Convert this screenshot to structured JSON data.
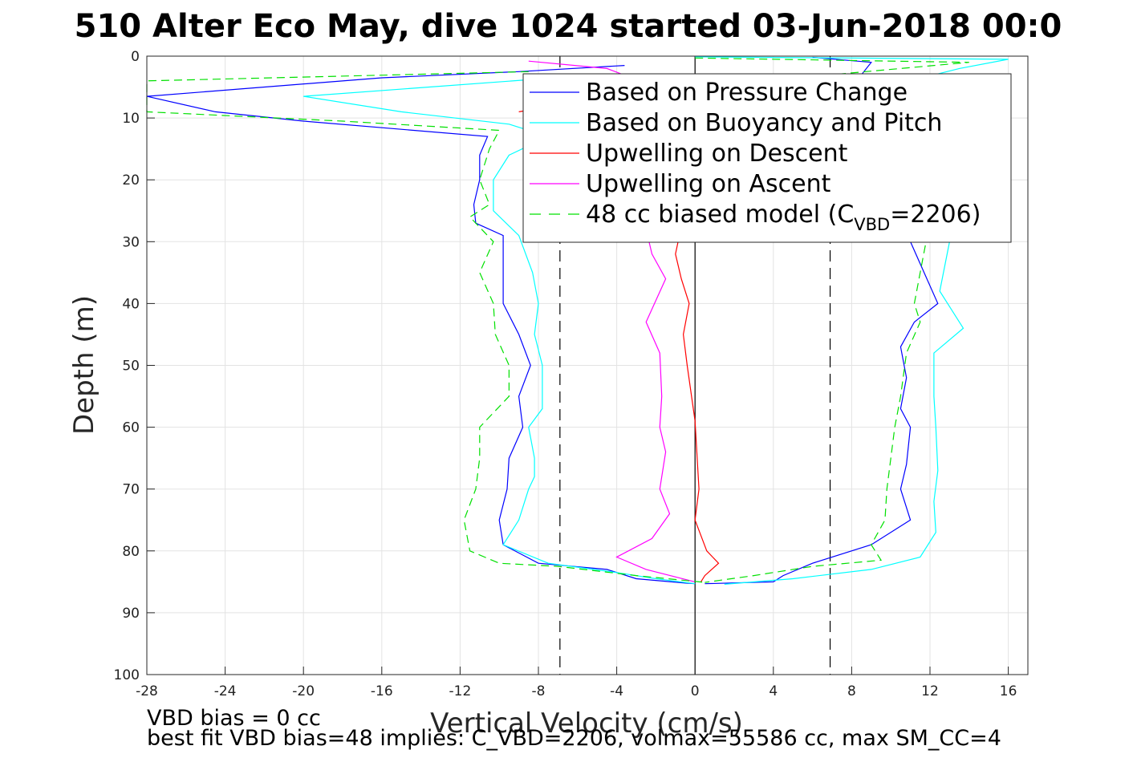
{
  "chart_data": {
    "type": "line",
    "title": "510 Alter Eco May, dive 1024 started 03-Jun-2018 00:0",
    "xlabel": "Vertical Velocity (cm/s)",
    "ylabel": "Depth (m)",
    "xlim": [
      -28,
      17
    ],
    "ylim": [
      0,
      100
    ],
    "y_reversed": true,
    "grid": true,
    "legend_position": "top-right",
    "x_ticks": [
      "-28",
      "-24",
      "-20",
      "-16",
      "-12",
      "-8",
      "-4",
      "0",
      "4",
      "8",
      "12",
      "16"
    ],
    "y_ticks": [
      "0",
      "10",
      "20",
      "30",
      "40",
      "50",
      "60",
      "70",
      "80",
      "90",
      "100"
    ],
    "reference_lines": [
      {
        "x": -6.9,
        "style": "dashed",
        "color": "#000000"
      },
      {
        "x": 0,
        "style": "solid",
        "color": "#000000"
      },
      {
        "x": 6.9,
        "style": "dashed",
        "color": "#000000"
      }
    ],
    "series": [
      {
        "name": "Based on Pressure Change",
        "color": "#0000ff",
        "dash": "",
        "descent": [
          [
            -3.6,
            1.5
          ],
          [
            -9,
            2.5
          ],
          [
            -16,
            3.5
          ],
          [
            -28,
            6.5
          ],
          [
            -24.5,
            9
          ],
          [
            -20,
            10.5
          ],
          [
            -10.6,
            13
          ],
          [
            -11,
            16
          ],
          [
            -11,
            20
          ],
          [
            -11.3,
            24
          ],
          [
            -11.2,
            27
          ],
          [
            -9.8,
            29
          ],
          [
            -9.8,
            35
          ],
          [
            -9.8,
            40
          ],
          [
            -9,
            45
          ],
          [
            -8.4,
            50
          ],
          [
            -9,
            55
          ],
          [
            -8.8,
            60
          ],
          [
            -9.5,
            65
          ],
          [
            -9.6,
            70
          ],
          [
            -10,
            75
          ],
          [
            -9.8,
            79
          ],
          [
            -8,
            82
          ],
          [
            -4.5,
            83
          ],
          [
            -3,
            84.5
          ],
          [
            -0.5,
            85.2
          ],
          [
            0,
            85.3
          ]
        ],
        "ascent": [
          [
            6,
            0.2
          ],
          [
            9,
            1
          ],
          [
            8.5,
            3
          ],
          [
            11,
            5
          ],
          [
            11.2,
            10
          ],
          [
            11.3,
            20
          ],
          [
            11,
            30
          ],
          [
            12.4,
            40
          ],
          [
            11.2,
            43
          ],
          [
            10.5,
            47
          ],
          [
            10.8,
            52
          ],
          [
            10.5,
            57
          ],
          [
            11,
            60
          ],
          [
            10.8,
            66
          ],
          [
            10.5,
            70
          ],
          [
            11,
            75
          ],
          [
            9,
            79
          ],
          [
            6,
            82
          ],
          [
            4.5,
            84
          ],
          [
            4,
            85
          ],
          [
            0.5,
            85.3
          ]
        ]
      },
      {
        "name": "Based on Buoyancy and Pitch",
        "color": "#00ffff",
        "dash": "",
        "descent": [
          [
            -5,
            3
          ],
          [
            -20,
            6.5
          ],
          [
            -15,
            9
          ],
          [
            -9.5,
            11
          ],
          [
            -7.5,
            13
          ],
          [
            -9.5,
            16
          ],
          [
            -10.3,
            20
          ],
          [
            -10.3,
            25
          ],
          [
            -9,
            29
          ],
          [
            -8.3,
            35
          ],
          [
            -8,
            40
          ],
          [
            -8.2,
            45
          ],
          [
            -7.8,
            50
          ],
          [
            -7.8,
            57
          ],
          [
            -8.5,
            60
          ],
          [
            -8.2,
            65
          ],
          [
            -8.2,
            68
          ],
          [
            -8.5,
            70
          ],
          [
            -9,
            75
          ],
          [
            -9.8,
            79
          ],
          [
            -7.5,
            82
          ],
          [
            -4,
            83.5
          ],
          [
            -2,
            84.5
          ],
          [
            0,
            85.3
          ]
        ],
        "ascent": [
          [
            0,
            0.1
          ],
          [
            16,
            0.5
          ],
          [
            13.5,
            2
          ],
          [
            11,
            4
          ],
          [
            12,
            7
          ],
          [
            12.5,
            15
          ],
          [
            12.8,
            25
          ],
          [
            13,
            30
          ],
          [
            12.5,
            38
          ],
          [
            13.7,
            44
          ],
          [
            12.2,
            48
          ],
          [
            12.2,
            55
          ],
          [
            12.3,
            60
          ],
          [
            12.4,
            67
          ],
          [
            12.2,
            72
          ],
          [
            12.3,
            77
          ],
          [
            11.5,
            81
          ],
          [
            9,
            83
          ],
          [
            5,
            84.5
          ],
          [
            1.5,
            85.4
          ]
        ]
      },
      {
        "name": "Upwelling on Descent",
        "color": "#ff0000",
        "dash": "",
        "descent": [
          [
            -9,
            9
          ],
          [
            -6.2,
            7.5
          ],
          [
            -5.5,
            12
          ],
          [
            -2.2,
            15
          ],
          [
            -0.8,
            20
          ],
          [
            -0.5,
            25
          ],
          [
            -0.8,
            29
          ],
          [
            -1,
            32
          ],
          [
            -0.7,
            36
          ],
          [
            -0.3,
            40
          ],
          [
            -0.6,
            45
          ],
          [
            -0.4,
            50
          ],
          [
            0,
            59
          ],
          [
            0.2,
            70
          ],
          [
            0,
            75
          ],
          [
            0.6,
            80
          ],
          [
            1.2,
            82
          ],
          [
            0.5,
            84
          ],
          [
            0.3,
            85
          ]
        ]
      },
      {
        "name": "Upwelling on Ascent",
        "color": "#ff00ff",
        "dash": "",
        "descent": [
          [
            -8.5,
            0.8
          ],
          [
            -4.5,
            2
          ],
          [
            -2,
            5
          ],
          [
            -2.2,
            12
          ],
          [
            -2,
            20
          ],
          [
            -2.5,
            28
          ],
          [
            -2.2,
            32
          ],
          [
            -1.5,
            36
          ],
          [
            -2.5,
            43
          ],
          [
            -1.8,
            48
          ],
          [
            -1.7,
            55
          ],
          [
            -1.8,
            60
          ],
          [
            -1.5,
            64
          ],
          [
            -1.8,
            70
          ],
          [
            -1.3,
            74
          ],
          [
            -2.2,
            78
          ],
          [
            -4,
            81
          ],
          [
            -2.5,
            83
          ],
          [
            0,
            85
          ]
        ]
      },
      {
        "name": "48 cc biased model (C",
        "name_subscript": "VBD",
        "name_suffix": "=2206)",
        "color": "#00e000",
        "dash": "10,6",
        "descent": [
          [
            -8.5,
            2.5
          ],
          [
            -28,
            4
          ],
          [
            -28,
            9
          ],
          [
            -18,
            10.5
          ],
          [
            -10,
            12
          ],
          [
            -10.5,
            15
          ],
          [
            -11,
            20
          ],
          [
            -10.5,
            24
          ],
          [
            -11.5,
            26
          ],
          [
            -10.3,
            30
          ],
          [
            -11,
            35
          ],
          [
            -10.3,
            40
          ],
          [
            -10.2,
            45
          ],
          [
            -9.5,
            50
          ],
          [
            -9.5,
            55
          ],
          [
            -11,
            60
          ],
          [
            -11,
            65
          ],
          [
            -11.2,
            70
          ],
          [
            -11.8,
            75
          ],
          [
            -11.5,
            80
          ],
          [
            -10,
            82
          ],
          [
            -7,
            82.5
          ],
          [
            -3,
            84
          ],
          [
            0.5,
            85.1
          ]
        ],
        "ascent": [
          [
            0,
            0.3
          ],
          [
            14,
            1
          ],
          [
            7,
            3
          ],
          [
            11,
            5
          ],
          [
            12,
            12
          ],
          [
            12.3,
            20
          ],
          [
            11.8,
            30
          ],
          [
            11.5,
            35
          ],
          [
            11.2,
            40
          ],
          [
            11.5,
            43
          ],
          [
            10.8,
            48
          ],
          [
            10.5,
            55
          ],
          [
            10.2,
            60
          ],
          [
            10,
            65
          ],
          [
            9.8,
            70
          ],
          [
            9.7,
            75
          ],
          [
            9,
            79
          ],
          [
            9.5,
            81.5
          ],
          [
            6,
            82.5
          ],
          [
            3,
            84
          ],
          [
            0.5,
            85.1
          ]
        ]
      }
    ]
  },
  "footer": {
    "line1": "VBD bias = 0 cc",
    "line2": "best fit VBD bias=48 implies: C_VBD=2206, volmax=55586 cc, max SM_CC=4"
  }
}
